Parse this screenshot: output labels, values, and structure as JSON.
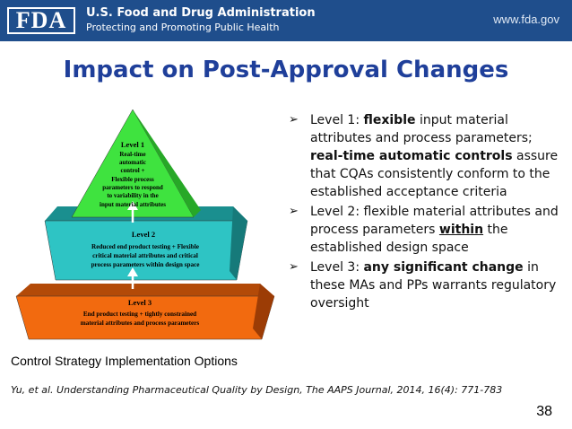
{
  "header": {
    "logo_text": "FDA",
    "agency_name": "U.S. Food and Drug Administration",
    "tagline": "Protecting and Promoting Public Health",
    "url": "www.fda.gov"
  },
  "title": "Impact on Post-Approval Changes",
  "diagram": {
    "level1": {
      "title": "Level 1",
      "lines": [
        "Real-time",
        "automatic",
        "control +",
        "Flexible process",
        "parameters to respond",
        "to variability in the",
        "input material attributes"
      ],
      "color": "#3fe33f"
    },
    "level2": {
      "title": "Level 2",
      "lines": [
        "Reduced end product testing + Flexible",
        "critical material attributes and critical",
        "process parameters within design space"
      ],
      "color": "#2ec4c4"
    },
    "level3": {
      "title": "Level 3",
      "lines": [
        "End product testing + tightly constrained",
        "material attributes and process parameters"
      ],
      "color": "#f26a0f"
    }
  },
  "caption": "Control Strategy Implementation Options",
  "bullets": [
    {
      "parts": [
        {
          "text": "Level 1: ",
          "style": "normal"
        },
        {
          "text": "flexible",
          "style": "bold"
        },
        {
          "text": " input material attributes and process parameters; ",
          "style": "normal"
        },
        {
          "text": "real-time automatic controls",
          "style": "bold"
        },
        {
          "text": " assure that CQAs consistently conform to the established acceptance criteria",
          "style": "normal"
        }
      ]
    },
    {
      "parts": [
        {
          "text": "Level 2: flexible material attributes and process parameters ",
          "style": "normal"
        },
        {
          "text": "within",
          "style": "bold-underline"
        },
        {
          "text": " the established design space",
          "style": "normal"
        }
      ]
    },
    {
      "parts": [
        {
          "text": "Level 3: ",
          "style": "normal"
        },
        {
          "text": "any significant change",
          "style": "bold"
        },
        {
          "text": " in these MAs and PPs warrants regulatory oversight",
          "style": "normal"
        }
      ]
    }
  ],
  "citation": "Yu, et al. Understanding Pharmaceutical Quality by Design, The AAPS Journal, 2014, 16(4): 771-783",
  "page_number": "38"
}
